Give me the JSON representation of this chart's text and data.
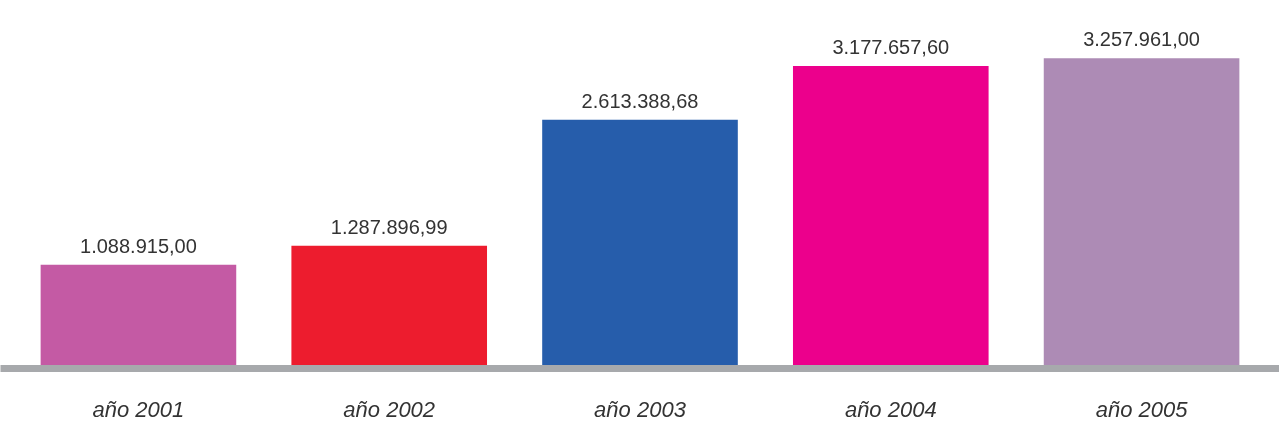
{
  "chart_data": {
    "type": "bar",
    "categories": [
      "año 2001",
      "año 2002",
      "año 2003",
      "año 2004",
      "año 2005"
    ],
    "values": [
      1088915.0,
      1287896.99,
      2613388.68,
      3177657.6,
      3257961.0
    ],
    "colors": [
      "#c45aa4",
      "#ed1c2e",
      "#265dab",
      "#ec008c",
      "#ad8bb5"
    ],
    "value_labels": [
      "1.088.915,00",
      "1.287.896,99",
      "2.613.388,68",
      "3.177.657,60",
      "3.257.961,00"
    ],
    "grid": false
  }
}
